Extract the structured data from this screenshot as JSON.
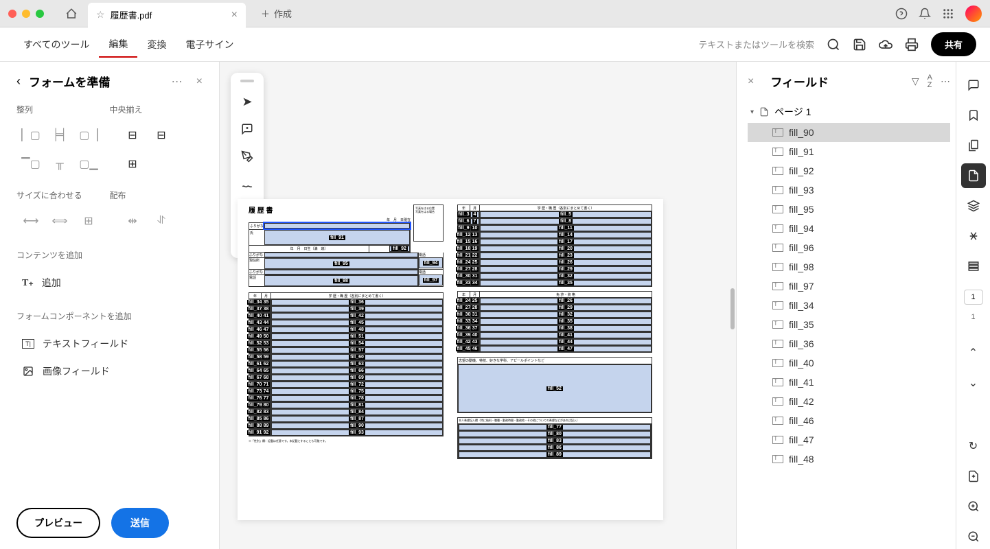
{
  "titlebar": {
    "tab_title": "履歴書.pdf",
    "new_tab_label": "作成"
  },
  "menubar": {
    "items": [
      "すべてのツール",
      "編集",
      "変換",
      "電子サイン"
    ],
    "search_hint": "テキストまたはツールを検索",
    "share_label": "共有"
  },
  "left_panel": {
    "title": "フォームを準備",
    "align_label": "整列",
    "center_label": "中央揃え",
    "size_label": "サイズに合わせる",
    "dist_label": "配布",
    "add_content_label": "コンテンツを追加",
    "add_btn": "追加",
    "form_comp_label": "フォームコンポーネントを追加",
    "text_field": "テキストフィールド",
    "image_field": "画像フィールド",
    "preview_btn": "プレビュー",
    "send_btn": "送信"
  },
  "right_panel": {
    "title": "フィールド",
    "page_label": "ページ 1",
    "fields": [
      "fill_90",
      "fill_91",
      "fill_92",
      "fill_93",
      "fill_95",
      "fill_94",
      "fill_96",
      "fill_98",
      "fill_97",
      "fill_34",
      "fill_35",
      "fill_36",
      "fill_40",
      "fill_41",
      "fill_42",
      "fill_46",
      "fill_47",
      "fill_48"
    ],
    "selected": "fill_90"
  },
  "rail": {
    "page_indicator": "1",
    "page_num": "1"
  },
  "canvas": {
    "page_num": "1"
  },
  "doc": {
    "title": "履 歴 書",
    "date_hdr": "年　月　日現在",
    "photo1": "写真をはる位置",
    "photo2": "写真をはる場合",
    "furi": "ふりがな",
    "name": "氏",
    "addr": "現住所",
    "tel": "電話",
    "birth": "年　月　日生（満　歳）",
    "edu_hdr": "学 歴・職 歴（各別にまとめて書く）",
    "lic_hdr": "免 許・資 格",
    "motive_hdr": "志望の動機、特技、好きな学科、アピールポイントなど",
    "wish_hdr": "本人希望記入欄（特に給料・職種・勤務時間・勤務地・その他についての希望などがあれば記入）",
    "note": "※「性別」欄：記載は任意です。未記載とすることも可能です。",
    "y": "年",
    "m": "月"
  }
}
